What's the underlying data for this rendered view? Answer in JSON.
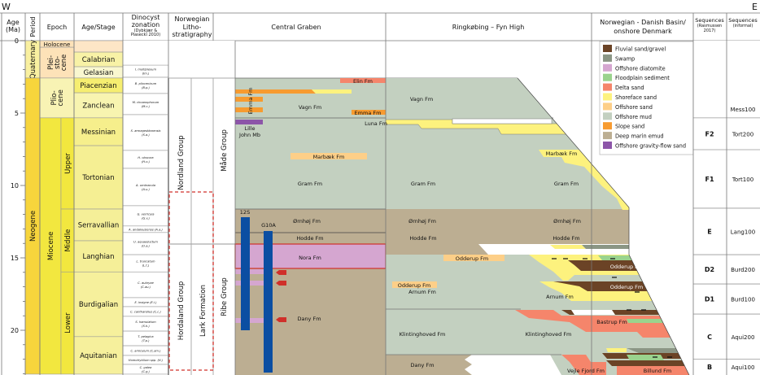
{
  "compass": {
    "west": "W",
    "east": "E"
  },
  "headers": {
    "age": [
      "Age",
      "(Ma)"
    ],
    "period": "Period",
    "epoch": "Epoch",
    "stage": "Age/Stage",
    "dinocyst": [
      "Dinocyst",
      "zonation",
      "(Dybkjær &",
      "Piasecki 2010)"
    ],
    "norwegian": [
      "Norwegian",
      "Litho-",
      "stratigraphy"
    ],
    "central_graben": "Central Graben",
    "ringkobing": "Ringkøbing – Fyn High",
    "basin": [
      "Norwegian - Danish Basin/",
      "onshore Denmark"
    ],
    "seq_rasmussen": [
      "Sequences",
      "(Rasmussen",
      "2017)"
    ],
    "seq_informal": [
      "Sequences",
      "(informal)"
    ]
  },
  "age_ticks": [
    "0",
    "5",
    "10",
    "15",
    "20"
  ],
  "periods": [
    {
      "name": "Quaternary",
      "top": 0,
      "base": 2.58,
      "color": "#f9f0a0"
    },
    {
      "name": "Neogene",
      "top": 2.58,
      "base": 23.03,
      "color": "#f7d53c"
    }
  ],
  "epochs": [
    {
      "name": [
        "Plei-",
        "sto-",
        "cene"
      ],
      "top": 0.45,
      "base": 2.58,
      "color": "#fde2b8"
    },
    {
      "name": [
        "Plio-",
        "cene"
      ],
      "top": 2.58,
      "base": 5.33,
      "color": "#f8f3b4"
    },
    {
      "name": [
        "Miocene"
      ],
      "top": 5.33,
      "base": 23.03,
      "color": "#f2e73f"
    }
  ],
  "holocene": "Holocene",
  "subepochs": [
    {
      "name": "Upper",
      "top": 5.33,
      "base": 11.63
    },
    {
      "name": "Middle",
      "top": 11.63,
      "base": 15.97
    },
    {
      "name": "Lower",
      "top": 15.97,
      "base": 23.03
    }
  ],
  "stages": [
    {
      "name": "",
      "top": 0,
      "base": 0.79,
      "color": "#fde6c6"
    },
    {
      "name": "Calabrian",
      "top": 0.79,
      "base": 1.8,
      "color": "#f8f2a6"
    },
    {
      "name": "Gelasian",
      "top": 1.8,
      "base": 2.58,
      "color": "#f9f7d0"
    },
    {
      "name": "Piacenzian",
      "top": 2.58,
      "base": 3.6,
      "color": "#f6ee70"
    },
    {
      "name": "Zanclean",
      "top": 3.6,
      "base": 5.33,
      "color": "#f8f4b0"
    },
    {
      "name": "Messinian",
      "top": 5.33,
      "base": 7.25,
      "color": "#f6ef8c"
    },
    {
      "name": "Tortonian",
      "top": 7.25,
      "base": 11.63,
      "color": "#f5ef93"
    },
    {
      "name": "Serravallian",
      "top": 11.63,
      "base": 13.82,
      "color": "#f5ef98"
    },
    {
      "name": "Langhian",
      "top": 13.82,
      "base": 15.97,
      "color": "#f5ef98"
    },
    {
      "name": "Burdigalian",
      "top": 15.97,
      "base": 20.44,
      "color": "#f6f09c"
    },
    {
      "name": "Aquitanian",
      "top": 20.44,
      "base": 23.03,
      "color": "#f6f09c"
    }
  ],
  "dinocyst_zones": [
    {
      "name": [
        "I. multiplexum",
        "(Im.)"
      ],
      "top": 1.69,
      "base": 2.53
    },
    {
      "name": [
        "B. pliocenicum",
        "(B.p.)"
      ],
      "top": 2.53,
      "base": 3.65
    },
    {
      "name": [
        "M. choanophorum",
        "(M.c.)"
      ],
      "top": 3.65,
      "base": 5.11
    },
    {
      "name": [
        "S. armageddonensis",
        "(S.a.)"
      ],
      "top": 5.11,
      "base": 7.58
    },
    {
      "name": [
        "H. obscura",
        "(H.o.)"
      ],
      "top": 7.58,
      "base": 8.82
    },
    {
      "name": [
        "A. umbracula",
        "(A.u.)"
      ],
      "top": 8.82,
      "base": 11.4
    },
    {
      "name": [
        "G. verricula",
        "(G.v.)"
      ],
      "top": 11.4,
      "base": 12.8
    },
    {
      "name": [
        "A. andalousiense (A.a.)"
      ],
      "top": 12.8,
      "base": 13.25
    },
    {
      "name": [
        "U. aquaeductum",
        "(U.a.)"
      ],
      "top": 13.25,
      "base": 14.78
    },
    {
      "name": [
        "L. truncatum",
        "(L.t.)"
      ],
      "top": 14.78,
      "base": 15.97
    },
    {
      "name": [
        "C. aubryae",
        "(C.au.)"
      ],
      "top": 15.97,
      "base": 17.75
    },
    {
      "name": [
        "E. insigne (E.i.)"
      ],
      "top": 17.75,
      "base": 18.37
    },
    {
      "name": [
        "C. cantharellus (C.c.)"
      ],
      "top": 18.37,
      "base": 19.04
    },
    {
      "name": [
        "S. hamulatum",
        "(S.h.)"
      ],
      "top": 19.04,
      "base": 20.06
    },
    {
      "name": [
        "T. pelagica",
        "(T.p.)"
      ],
      "top": 20.06,
      "base": 21.07
    },
    {
      "name": [
        "C. amiculum (C.am.)"
      ],
      "top": 21.07,
      "base": 21.74
    },
    {
      "name": [
        "Homotryblium spp. (H.)"
      ],
      "top": 21.74,
      "base": 22.36
    },
    {
      "name": [
        "C. galea",
        "(C.g.)"
      ],
      "top": 22.36,
      "base": 23.03
    }
  ],
  "lithostratigraphy": {
    "nordland": "Nordland Group",
    "hordaland": "Hordaland Group",
    "lark": "Lark Formation",
    "made": "Måde Group",
    "ribe": "Ribe Group"
  },
  "central_graben": {
    "elin": "Elin Fm",
    "emma_vertical": "Emma Fm",
    "vagn": "Vagn Fm",
    "emma": "Emma Fm",
    "lille": "Lille",
    "john_mb": "John Mb",
    "luna": "Luna Fm",
    "marbaek": "Marbæk Fm",
    "gram": "Gram Fm",
    "ornhoj": "Ørnhøj Fm",
    "hodde": "Hodde Fm",
    "nora": "Nora Fm",
    "dany": "Dany Fm",
    "well_12s": "12S",
    "well_g10a": "G10A"
  },
  "ringkobing": {
    "vagn": "Vagn Fm",
    "gram": "Gram Fm",
    "ornhoj": "Ørnhøj Fm",
    "hodde": "Hodde Fm",
    "odderup_1": "Odderup Fm",
    "odderup_2": "Odderup Fm",
    "arnum": "Arnum Fm",
    "klintinghoved": "Klintinghoved Fm",
    "dany": "Dany Fm"
  },
  "basin": {
    "marbaek": "Marbæk Fm",
    "gram": "Gram Fm",
    "ornhoj": "Ørnhøj Fm",
    "hodde": "Hodde Fm",
    "odderup_1": "Odderup Fm",
    "odderup_2": "Odderup Fm",
    "arnum": "Arnum Fm",
    "klintinghoved": "Klintinghoved Fm",
    "bastrup": "Bastrup Fm",
    "vejle_fjord": "Vejle Fjord Fm",
    "billund": "Billund Fm"
  },
  "legend": [
    {
      "label": "Fluvial sand/gravel",
      "color": "#6b4326"
    },
    {
      "label": "Swamp",
      "color": "#8b9685"
    },
    {
      "label": "Offshore diatomite",
      "color": "#d5a6d0"
    },
    {
      "label": "Floodplain sediment",
      "color": "#9ad38d"
    },
    {
      "label": "Delta sand",
      "color": "#f5856b"
    },
    {
      "label": "Shoreface sand",
      "color": "#fdf27e"
    },
    {
      "label": "Offshore sand",
      "color": "#fdcf88"
    },
    {
      "label": "Offshore mud",
      "color": "#c3d0c0"
    },
    {
      "label": "Slope sand",
      "color": "#f79b30"
    },
    {
      "label": "Deep marin emud",
      "color": "#bcae92"
    },
    {
      "label": "Offshore gravity-flow sand",
      "color": "#8c55a8"
    }
  ],
  "sequences": [
    {
      "rasmussen": "",
      "informal": "Mess100",
      "top": 0,
      "base": 5.33
    },
    {
      "rasmussen": "F2",
      "informal": "Tort200",
      "top": 5.33,
      "base": 7.53
    },
    {
      "rasmussen": "F1",
      "informal": "Tort100",
      "top": 7.53,
      "base": 11.57
    },
    {
      "rasmussen": "E",
      "informal": "Lang100",
      "top": 11.57,
      "base": 14.78
    },
    {
      "rasmussen": "D2",
      "informal": "Burd200",
      "top": 14.78,
      "base": 16.8
    },
    {
      "rasmussen": "D1",
      "informal": "Burd100",
      "top": 16.8,
      "base": 18.88
    },
    {
      "rasmussen": "C",
      "informal": "Aqui200",
      "top": 18.88,
      "base": 22.0
    },
    {
      "rasmussen": "B",
      "informal": "Aqui100",
      "top": 22.0,
      "base": 23.03
    }
  ],
  "colors": {
    "offshore_mud": "#c3d0c0",
    "deep_marine_mud": "#bcae92",
    "diatomite": "#d5a6d0",
    "well": "#0b4ea2",
    "arrow": "#d0302a",
    "lark_outline": "#d0302a"
  }
}
